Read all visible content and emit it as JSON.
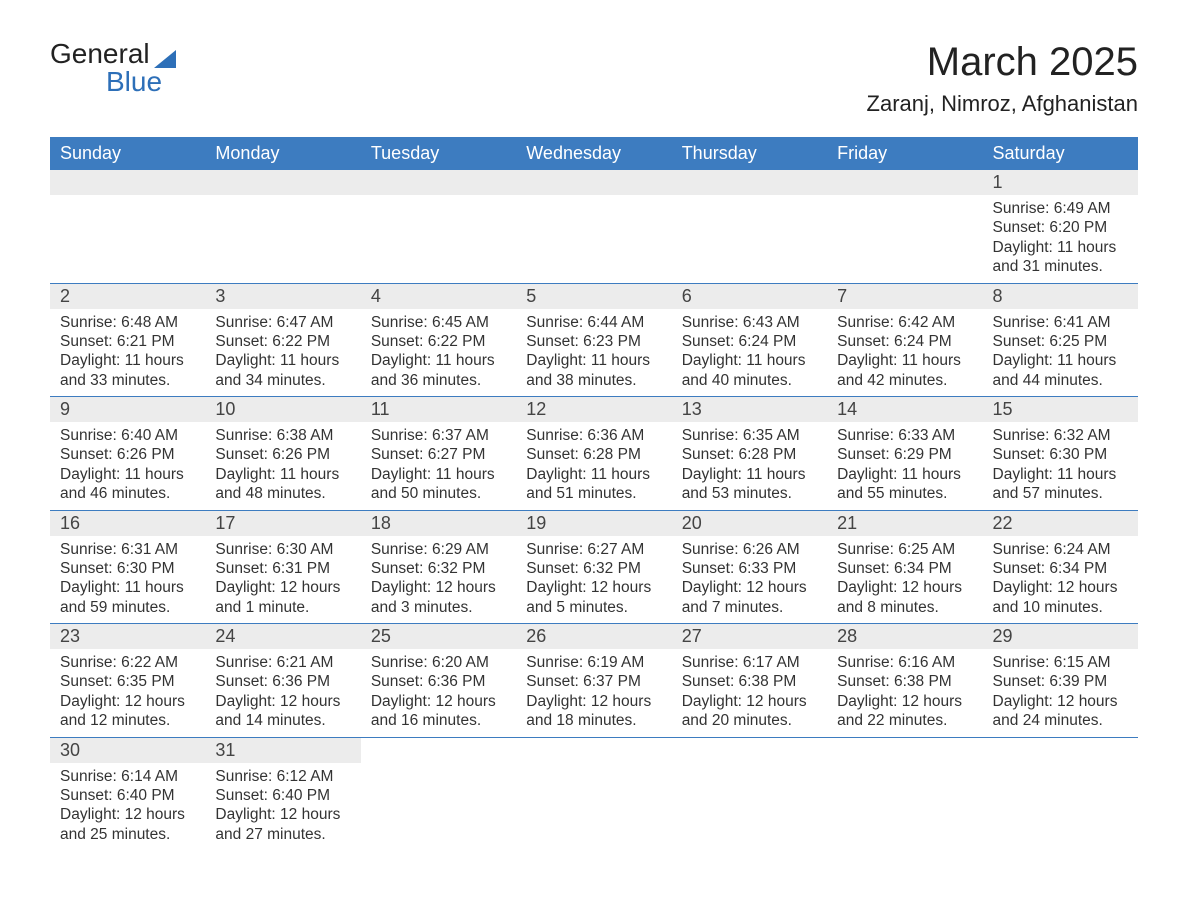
{
  "logo": {
    "word1": "General",
    "word2": "Blue"
  },
  "title": "March 2025",
  "location": "Zaranj, Nimroz, Afghanistan",
  "columns": [
    "Sunday",
    "Monday",
    "Tuesday",
    "Wednesday",
    "Thursday",
    "Friday",
    "Saturday"
  ],
  "colors": {
    "header_bg": "#3d7cc0",
    "header_text": "#ffffff",
    "daynum_bg": "#ececec",
    "row_divider": "#3d7cc0",
    "text": "#303030",
    "logo_accent": "#2d6fb8",
    "background": "#ffffff"
  },
  "typography": {
    "title_fontsize": 40,
    "location_fontsize": 22,
    "header_fontsize": 18,
    "daynum_fontsize": 18,
    "detail_fontsize": 15.5,
    "font_family": "Arial"
  },
  "labels": {
    "sunrise": "Sunrise:",
    "sunset": "Sunset:",
    "daylight": "Daylight:"
  },
  "weeks": [
    [
      null,
      null,
      null,
      null,
      null,
      null,
      {
        "n": "1",
        "sunrise": "6:49 AM",
        "sunset": "6:20 PM",
        "daylight": "11 hours and 31 minutes."
      }
    ],
    [
      {
        "n": "2",
        "sunrise": "6:48 AM",
        "sunset": "6:21 PM",
        "daylight": "11 hours and 33 minutes."
      },
      {
        "n": "3",
        "sunrise": "6:47 AM",
        "sunset": "6:22 PM",
        "daylight": "11 hours and 34 minutes."
      },
      {
        "n": "4",
        "sunrise": "6:45 AM",
        "sunset": "6:22 PM",
        "daylight": "11 hours and 36 minutes."
      },
      {
        "n": "5",
        "sunrise": "6:44 AM",
        "sunset": "6:23 PM",
        "daylight": "11 hours and 38 minutes."
      },
      {
        "n": "6",
        "sunrise": "6:43 AM",
        "sunset": "6:24 PM",
        "daylight": "11 hours and 40 minutes."
      },
      {
        "n": "7",
        "sunrise": "6:42 AM",
        "sunset": "6:24 PM",
        "daylight": "11 hours and 42 minutes."
      },
      {
        "n": "8",
        "sunrise": "6:41 AM",
        "sunset": "6:25 PM",
        "daylight": "11 hours and 44 minutes."
      }
    ],
    [
      {
        "n": "9",
        "sunrise": "6:40 AM",
        "sunset": "6:26 PM",
        "daylight": "11 hours and 46 minutes."
      },
      {
        "n": "10",
        "sunrise": "6:38 AM",
        "sunset": "6:26 PM",
        "daylight": "11 hours and 48 minutes."
      },
      {
        "n": "11",
        "sunrise": "6:37 AM",
        "sunset": "6:27 PM",
        "daylight": "11 hours and 50 minutes."
      },
      {
        "n": "12",
        "sunrise": "6:36 AM",
        "sunset": "6:28 PM",
        "daylight": "11 hours and 51 minutes."
      },
      {
        "n": "13",
        "sunrise": "6:35 AM",
        "sunset": "6:28 PM",
        "daylight": "11 hours and 53 minutes."
      },
      {
        "n": "14",
        "sunrise": "6:33 AM",
        "sunset": "6:29 PM",
        "daylight": "11 hours and 55 minutes."
      },
      {
        "n": "15",
        "sunrise": "6:32 AM",
        "sunset": "6:30 PM",
        "daylight": "11 hours and 57 minutes."
      }
    ],
    [
      {
        "n": "16",
        "sunrise": "6:31 AM",
        "sunset": "6:30 PM",
        "daylight": "11 hours and 59 minutes."
      },
      {
        "n": "17",
        "sunrise": "6:30 AM",
        "sunset": "6:31 PM",
        "daylight": "12 hours and 1 minute."
      },
      {
        "n": "18",
        "sunrise": "6:29 AM",
        "sunset": "6:32 PM",
        "daylight": "12 hours and 3 minutes."
      },
      {
        "n": "19",
        "sunrise": "6:27 AM",
        "sunset": "6:32 PM",
        "daylight": "12 hours and 5 minutes."
      },
      {
        "n": "20",
        "sunrise": "6:26 AM",
        "sunset": "6:33 PM",
        "daylight": "12 hours and 7 minutes."
      },
      {
        "n": "21",
        "sunrise": "6:25 AM",
        "sunset": "6:34 PM",
        "daylight": "12 hours and 8 minutes."
      },
      {
        "n": "22",
        "sunrise": "6:24 AM",
        "sunset": "6:34 PM",
        "daylight": "12 hours and 10 minutes."
      }
    ],
    [
      {
        "n": "23",
        "sunrise": "6:22 AM",
        "sunset": "6:35 PM",
        "daylight": "12 hours and 12 minutes."
      },
      {
        "n": "24",
        "sunrise": "6:21 AM",
        "sunset": "6:36 PM",
        "daylight": "12 hours and 14 minutes."
      },
      {
        "n": "25",
        "sunrise": "6:20 AM",
        "sunset": "6:36 PM",
        "daylight": "12 hours and 16 minutes."
      },
      {
        "n": "26",
        "sunrise": "6:19 AM",
        "sunset": "6:37 PM",
        "daylight": "12 hours and 18 minutes."
      },
      {
        "n": "27",
        "sunrise": "6:17 AM",
        "sunset": "6:38 PM",
        "daylight": "12 hours and 20 minutes."
      },
      {
        "n": "28",
        "sunrise": "6:16 AM",
        "sunset": "6:38 PM",
        "daylight": "12 hours and 22 minutes."
      },
      {
        "n": "29",
        "sunrise": "6:15 AM",
        "sunset": "6:39 PM",
        "daylight": "12 hours and 24 minutes."
      }
    ],
    [
      {
        "n": "30",
        "sunrise": "6:14 AM",
        "sunset": "6:40 PM",
        "daylight": "12 hours and 25 minutes."
      },
      {
        "n": "31",
        "sunrise": "6:12 AM",
        "sunset": "6:40 PM",
        "daylight": "12 hours and 27 minutes."
      },
      null,
      null,
      null,
      null,
      null
    ]
  ]
}
